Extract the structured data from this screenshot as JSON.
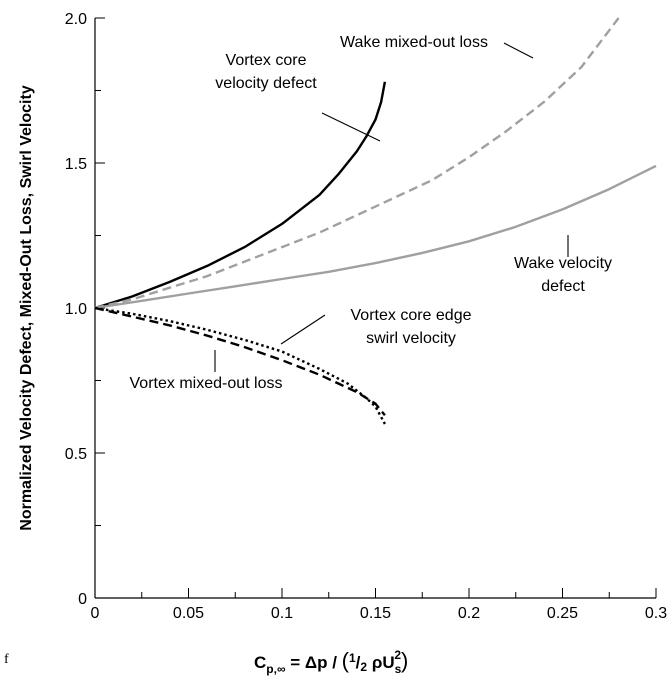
{
  "chart_data": {
    "type": "line",
    "title": "",
    "xlabel": "",
    "ylabel": "Normalized Velocity Defect, Mixed-Out Loss, Swirl Velocity",
    "xlim": [
      0,
      0.3
    ],
    "ylim": [
      0,
      2.0
    ],
    "x_ticks": [
      0,
      0.05,
      0.1,
      0.15,
      0.2,
      0.25,
      0.3
    ],
    "x_tick_labels": [
      "0",
      "0.05",
      "0.1",
      "0.15",
      "0.2",
      "0.25",
      "0.3"
    ],
    "y_ticks": [
      0,
      0.5,
      1.0,
      1.5,
      2.0
    ],
    "y_tick_labels": [
      "0",
      "0.5",
      "1.0",
      "1.5",
      "2.0"
    ],
    "grid": false,
    "legend": "none",
    "xlabel_parts": {
      "symbol": "C",
      "subscript": "p,∞",
      "equals": " = Δp / ",
      "open": "(",
      "half_num": "1",
      "slash": "/",
      "half_den": "2",
      "rho": " ρU",
      "u_sub": "s",
      "u_sup": "2",
      "close": ")"
    },
    "series": [
      {
        "name": "Vortex core velocity defect",
        "label_lines": [
          "Vortex core",
          "velocity defect"
        ],
        "color": "#000000",
        "style": "solid",
        "x": [
          0,
          0.02,
          0.04,
          0.06,
          0.08,
          0.1,
          0.12,
          0.13,
          0.14,
          0.145,
          0.15,
          0.153,
          0.155
        ],
        "y": [
          1.0,
          1.04,
          1.09,
          1.145,
          1.21,
          1.29,
          1.39,
          1.46,
          1.54,
          1.59,
          1.65,
          1.71,
          1.78
        ]
      },
      {
        "name": "Wake mixed-out loss",
        "label_lines": [
          "Wake mixed-out loss"
        ],
        "color": "#a0a0a0",
        "style": "dashed",
        "x": [
          0,
          0.02,
          0.04,
          0.06,
          0.08,
          0.1,
          0.12,
          0.14,
          0.16,
          0.18,
          0.2,
          0.22,
          0.24,
          0.26,
          0.28
        ],
        "y": [
          1.0,
          1.03,
          1.07,
          1.11,
          1.16,
          1.21,
          1.26,
          1.32,
          1.38,
          1.44,
          1.52,
          1.61,
          1.71,
          1.83,
          2.0
        ]
      },
      {
        "name": "Wake velocity defect",
        "label_lines": [
          "Wake velocity",
          "defect"
        ],
        "color": "#a0a0a0",
        "style": "solid",
        "x": [
          0,
          0.025,
          0.05,
          0.075,
          0.1,
          0.125,
          0.15,
          0.175,
          0.2,
          0.225,
          0.25,
          0.275,
          0.3
        ],
        "y": [
          1.0,
          1.025,
          1.05,
          1.075,
          1.1,
          1.125,
          1.155,
          1.19,
          1.23,
          1.28,
          1.34,
          1.41,
          1.49
        ]
      },
      {
        "name": "Vortex core edge swirl velocity",
        "label_lines": [
          "Vortex core edge",
          "swirl velocity"
        ],
        "color": "#000000",
        "style": "dotted",
        "x": [
          0,
          0.02,
          0.04,
          0.06,
          0.08,
          0.1,
          0.12,
          0.135,
          0.145,
          0.15,
          0.155
        ],
        "y": [
          1.0,
          0.98,
          0.955,
          0.925,
          0.89,
          0.85,
          0.79,
          0.74,
          0.69,
          0.66,
          0.6
        ]
      },
      {
        "name": "Vortex mixed-out loss",
        "label_lines": [
          "Vortex mixed-out loss"
        ],
        "color": "#000000",
        "style": "dashed",
        "x": [
          0,
          0.02,
          0.04,
          0.06,
          0.08,
          0.1,
          0.12,
          0.13,
          0.14,
          0.15,
          0.155
        ],
        "y": [
          1.0,
          0.97,
          0.94,
          0.905,
          0.865,
          0.82,
          0.77,
          0.74,
          0.71,
          0.67,
          0.63
        ]
      }
    ]
  },
  "stray_text": "f"
}
